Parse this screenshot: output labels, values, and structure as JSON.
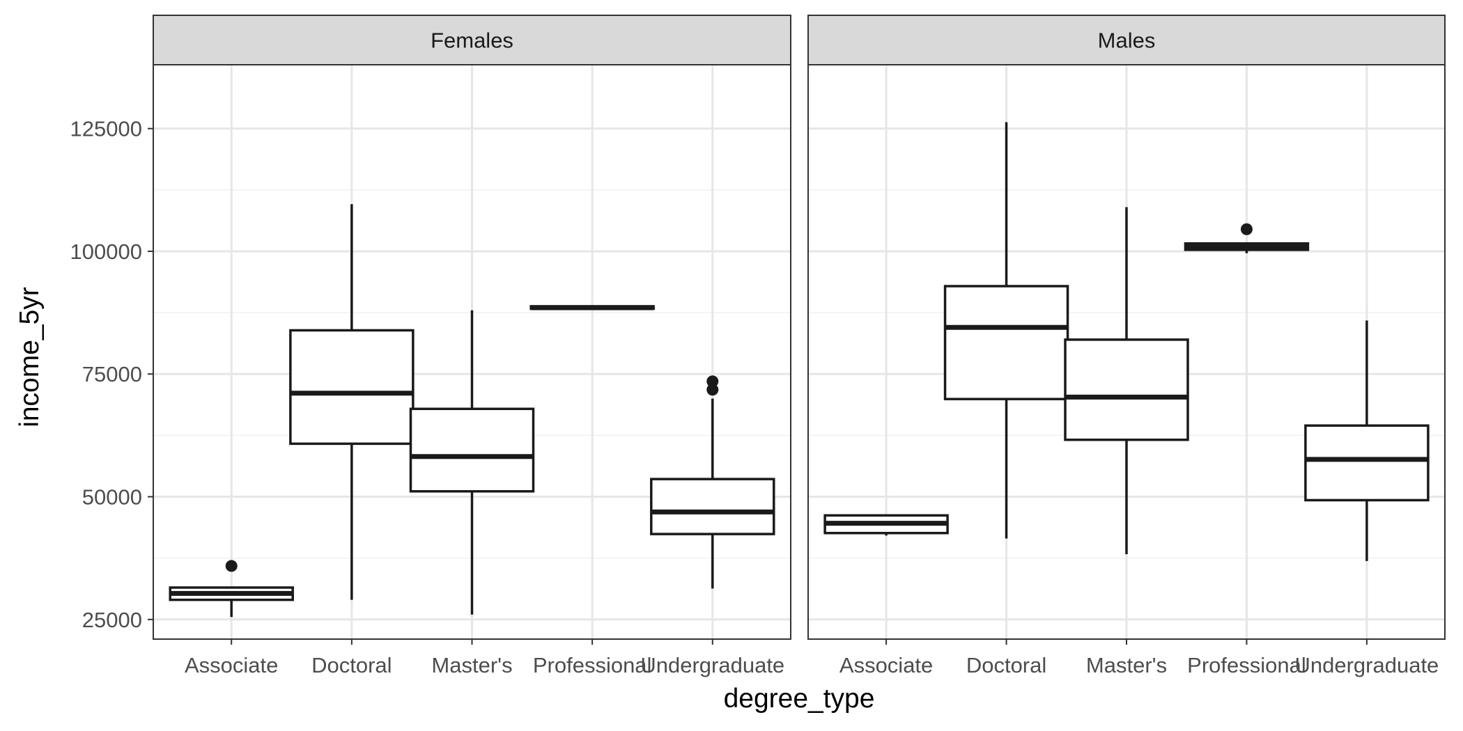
{
  "chart_data": {
    "type": "boxplot",
    "xlabel": "degree_type",
    "ylabel": "income_5yr",
    "ylim": [
      21000,
      138000
    ],
    "yticks": [
      25000,
      50000,
      75000,
      100000,
      125000
    ],
    "ytick_labels": [
      "25000",
      "50000",
      "75000",
      "100000",
      "125000"
    ],
    "categories": [
      "Associate",
      "Doctoral",
      "Master's",
      "Professional",
      "Undergraduate"
    ],
    "grid": true,
    "panels": [
      {
        "name": "Females",
        "boxes": [
          {
            "category": "Associate",
            "whisker_low": 25500,
            "q1": 29000,
            "median": 30300,
            "q3": 31500,
            "whisker_high": 31500,
            "outliers": [
              35900
            ]
          },
          {
            "category": "Doctoral",
            "whisker_low": 29000,
            "q1": 60800,
            "median": 71100,
            "q3": 83900,
            "whisker_high": 109600,
            "outliers": []
          },
          {
            "category": "Master's",
            "whisker_low": 26000,
            "q1": 51100,
            "median": 58200,
            "q3": 67900,
            "whisker_high": 88000,
            "outliers": []
          },
          {
            "category": "Professional",
            "whisker_low": 88100,
            "q1": 88300,
            "median": 88500,
            "q3": 88800,
            "whisker_high": 88900,
            "outliers": []
          },
          {
            "category": "Undergraduate",
            "whisker_low": 31300,
            "q1": 42400,
            "median": 46900,
            "q3": 53600,
            "whisker_high": 70000,
            "outliers": [
              71800,
              73500
            ]
          }
        ]
      },
      {
        "name": "Males",
        "boxes": [
          {
            "category": "Associate",
            "whisker_low": 42100,
            "q1": 42600,
            "median": 44600,
            "q3": 46200,
            "whisker_high": 46200,
            "outliers": []
          },
          {
            "category": "Doctoral",
            "whisker_low": 41500,
            "q1": 69900,
            "median": 84500,
            "q3": 92900,
            "whisker_high": 126300,
            "outliers": []
          },
          {
            "category": "Master's",
            "whisker_low": 38300,
            "q1": 61600,
            "median": 70300,
            "q3": 82000,
            "whisker_high": 109000,
            "outliers": []
          },
          {
            "category": "Professional",
            "whisker_low": 99600,
            "q1": 100300,
            "median": 100900,
            "q3": 101600,
            "whisker_high": 101600,
            "outliers": [
              104500
            ]
          },
          {
            "category": "Undergraduate",
            "whisker_low": 36900,
            "q1": 49300,
            "median": 57600,
            "q3": 64500,
            "whisker_high": 85900,
            "outliers": []
          }
        ]
      }
    ]
  }
}
